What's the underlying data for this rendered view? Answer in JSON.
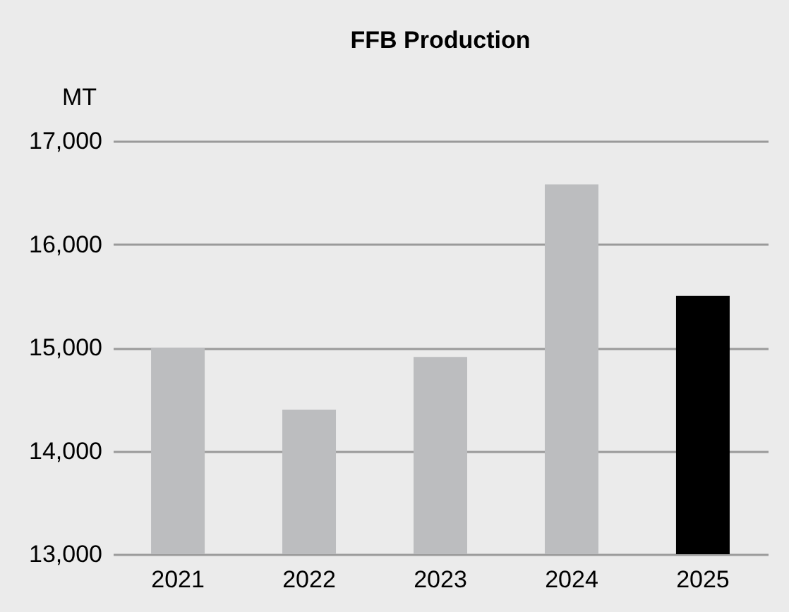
{
  "chart_data": {
    "type": "bar",
    "title": "FFB Production",
    "ylabel": "MT",
    "categories": [
      "2021",
      "2022",
      "2023",
      "2024",
      "2025"
    ],
    "values": [
      15000,
      14400,
      14910,
      16580,
      15500
    ],
    "colors": [
      "#bcbdbf",
      "#bcbdbf",
      "#bcbdbf",
      "#bcbdbf",
      "#000000"
    ],
    "ylim": [
      13000,
      17000
    ],
    "yticks": [
      {
        "value": 13000,
        "label": "13,000"
      },
      {
        "value": 14000,
        "label": "14,000"
      },
      {
        "value": 15000,
        "label": "15,000"
      },
      {
        "value": 16000,
        "label": "16,000"
      },
      {
        "value": 17000,
        "label": "17,000"
      }
    ],
    "grid": "y"
  }
}
